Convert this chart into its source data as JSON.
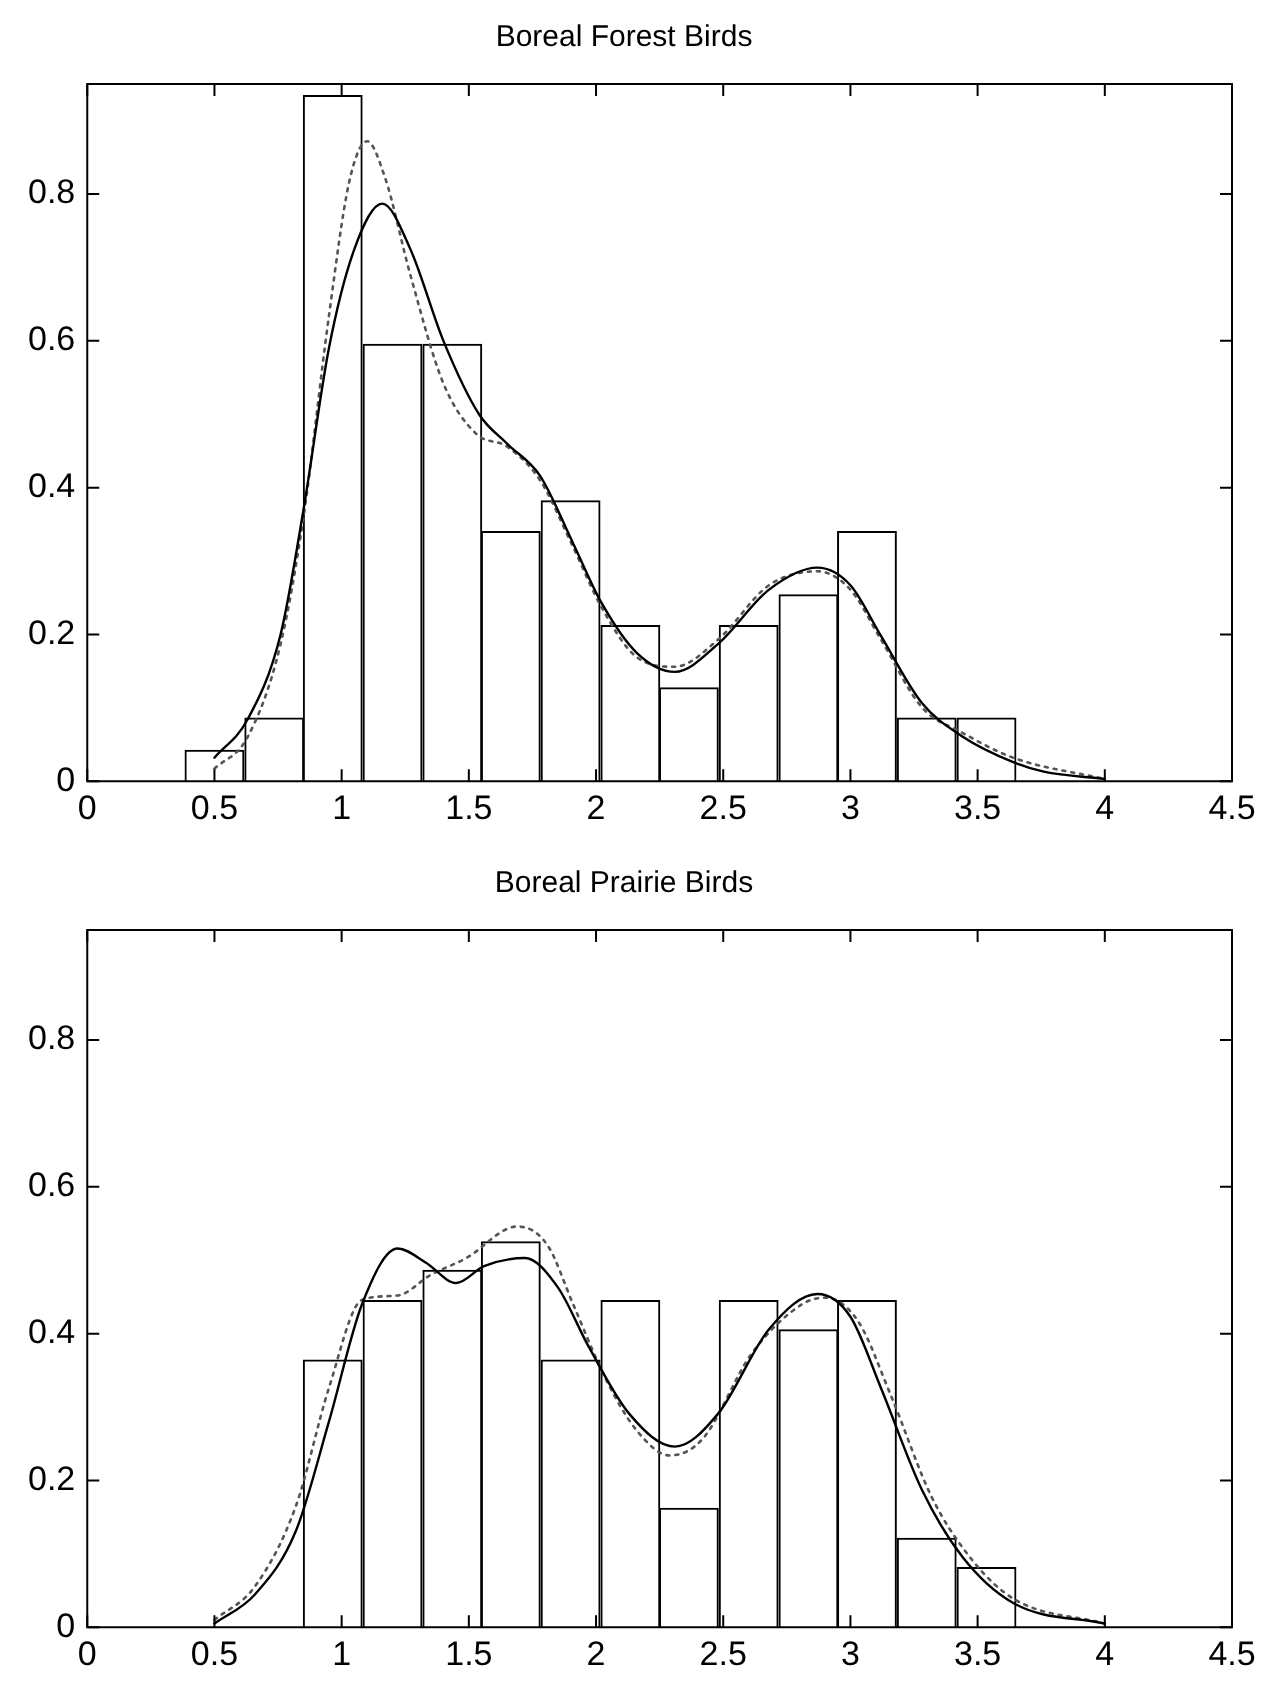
{
  "chart_data": [
    {
      "type": "histogram",
      "title": "Boreal Forest Birds",
      "color": "#ffffff",
      "bins": [
        0.38,
        0.62,
        0.85,
        1.08,
        1.32,
        1.55,
        1.78,
        2.02,
        2.25,
        2.48,
        2.72,
        2.95,
        3.18,
        3.42,
        3.65
      ],
      "values": [
        0.042,
        0.086,
        0.934,
        0.595,
        0.595,
        0.34,
        0.382,
        0.212,
        0.127,
        0.212,
        0.254,
        0.34,
        0.086,
        0.086
      ],
      "xlim": [
        0,
        4.5
      ],
      "xticks": [
        0,
        0.5,
        1,
        1.5,
        2,
        2.5,
        3,
        3.5,
        4,
        4.5
      ],
      "ylim": [
        0,
        0.95
      ],
      "yticks": [
        0,
        0.2,
        0.4,
        0.6,
        0.8
      ],
      "grid": false,
      "legend": false,
      "series": [
        {
          "type": "line",
          "color": "#000000",
          "line_style": "solid",
          "x": [
            0.5,
            0.63,
            0.76,
            0.85,
            0.95,
            1.05,
            1.16,
            1.27,
            1.4,
            1.54,
            1.65,
            1.78,
            1.91,
            2.02,
            2.16,
            2.31,
            2.48,
            2.68,
            2.87,
            3.0,
            3.12,
            3.28,
            3.44,
            3.64,
            3.76,
            4.0
          ],
          "values": [
            0.032,
            0.084,
            0.2,
            0.37,
            0.59,
            0.725,
            0.787,
            0.725,
            0.6,
            0.5,
            0.46,
            0.416,
            0.324,
            0.244,
            0.175,
            0.149,
            0.187,
            0.261,
            0.291,
            0.267,
            0.198,
            0.107,
            0.061,
            0.026,
            0.013,
            0.003
          ]
        },
        {
          "type": "line",
          "color": "#555555",
          "line_style": "dotted",
          "x": [
            0.5,
            0.63,
            0.76,
            0.85,
            0.95,
            1.03,
            1.1,
            1.17,
            1.27,
            1.4,
            1.53,
            1.65,
            1.78,
            1.91,
            2.02,
            2.16,
            2.31,
            2.48,
            2.68,
            2.87,
            3.0,
            3.12,
            3.28,
            3.44,
            3.64,
            4.0
          ],
          "values": [
            0.017,
            0.06,
            0.187,
            0.36,
            0.634,
            0.817,
            0.872,
            0.823,
            0.69,
            0.542,
            0.473,
            0.456,
            0.41,
            0.319,
            0.238,
            0.169,
            0.156,
            0.193,
            0.267,
            0.286,
            0.261,
            0.193,
            0.101,
            0.066,
            0.032,
            0.003
          ]
        }
      ]
    },
    {
      "type": "histogram",
      "title": "Boreal Prairie Birds",
      "color": "#ffffff",
      "bins": [
        0.38,
        0.62,
        0.85,
        1.08,
        1.32,
        1.55,
        1.78,
        2.02,
        2.25,
        2.48,
        2.72,
        2.95,
        3.18,
        3.42,
        3.65
      ],
      "values": [
        0,
        0,
        0.364,
        0.445,
        0.486,
        0.525,
        0.364,
        0.445,
        0.162,
        0.445,
        0.405,
        0.445,
        0.121,
        0.081
      ],
      "xlim": [
        0,
        4.5
      ],
      "xticks": [
        0,
        0.5,
        1,
        1.5,
        2,
        2.5,
        3,
        3.5,
        4,
        4.5
      ],
      "ylim": [
        0,
        0.95
      ],
      "yticks": [
        0,
        0.2,
        0.4,
        0.6,
        0.8
      ],
      "grid": false,
      "legend": false,
      "series": [
        {
          "type": "line",
          "color": "#000000",
          "line_style": "solid",
          "x": [
            0.5,
            0.66,
            0.82,
            0.95,
            1.08,
            1.22,
            1.33,
            1.45,
            1.56,
            1.72,
            1.85,
            1.97,
            2.13,
            2.31,
            2.48,
            2.68,
            2.87,
            3.0,
            3.12,
            3.28,
            3.44,
            3.64,
            4.0
          ],
          "values": [
            0.005,
            0.045,
            0.131,
            0.28,
            0.44,
            0.516,
            0.497,
            0.469,
            0.492,
            0.503,
            0.463,
            0.383,
            0.291,
            0.246,
            0.291,
            0.406,
            0.454,
            0.423,
            0.326,
            0.188,
            0.096,
            0.033,
            0.005
          ]
        },
        {
          "type": "line",
          "color": "#555555",
          "line_style": "dotted",
          "x": [
            0.5,
            0.66,
            0.82,
            0.95,
            1.08,
            1.22,
            1.35,
            1.49,
            1.69,
            1.81,
            1.91,
            2.04,
            2.16,
            2.29,
            2.42,
            2.61,
            2.81,
            2.9,
            3.03,
            3.16,
            3.32,
            3.48,
            3.64,
            4.0
          ],
          "values": [
            0.01,
            0.056,
            0.165,
            0.326,
            0.446,
            0.452,
            0.48,
            0.503,
            0.546,
            0.52,
            0.44,
            0.337,
            0.268,
            0.234,
            0.257,
            0.372,
            0.44,
            0.449,
            0.417,
            0.315,
            0.177,
            0.091,
            0.039,
            0.005
          ]
        }
      ]
    }
  ]
}
